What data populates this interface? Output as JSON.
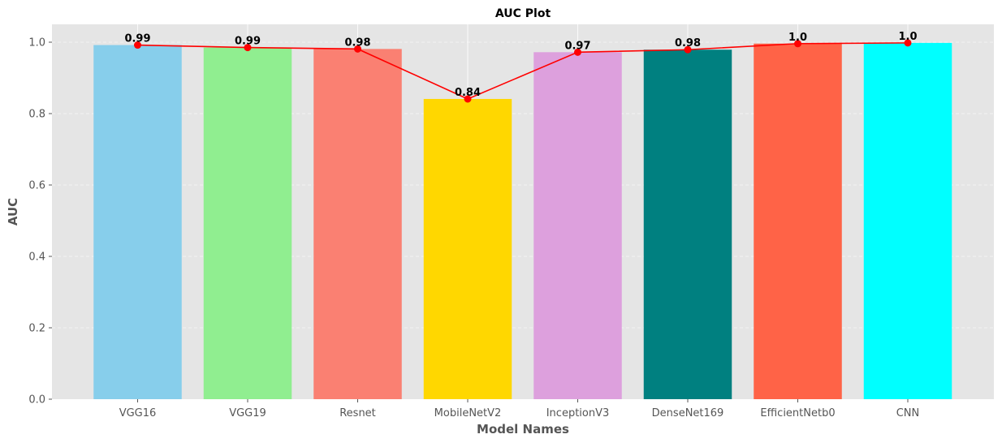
{
  "chart_data": {
    "type": "bar",
    "title": "AUC Plot",
    "xlabel": "Model Names",
    "ylabel": "AUC",
    "categories": [
      "VGG16",
      "VGG19",
      "Resnet",
      "MobileNetV2",
      "InceptionV3",
      "DenseNet169",
      "EfficientNetb0",
      "CNN"
    ],
    "values": [
      0.992,
      0.985,
      0.981,
      0.841,
      0.972,
      0.979,
      0.996,
      0.998
    ],
    "data_labels": [
      "0.99",
      "0.99",
      "0.98",
      "0.84",
      "0.97",
      "0.98",
      "1.0",
      "1.0"
    ],
    "bar_colors": [
      "#87CEEB",
      "#90EE90",
      "#FA8072",
      "#FFD700",
      "#DDA0DD",
      "#008080",
      "#FF6347",
      "#00FFFF"
    ],
    "line_overlay": {
      "color": "#FF0000",
      "marker": "circle"
    },
    "ylim": [
      0,
      1.05
    ],
    "yticks": [
      "0.0",
      "0.2",
      "0.4",
      "0.6",
      "0.8",
      "1.0"
    ],
    "grid": true,
    "background": "#E5E5E5"
  }
}
